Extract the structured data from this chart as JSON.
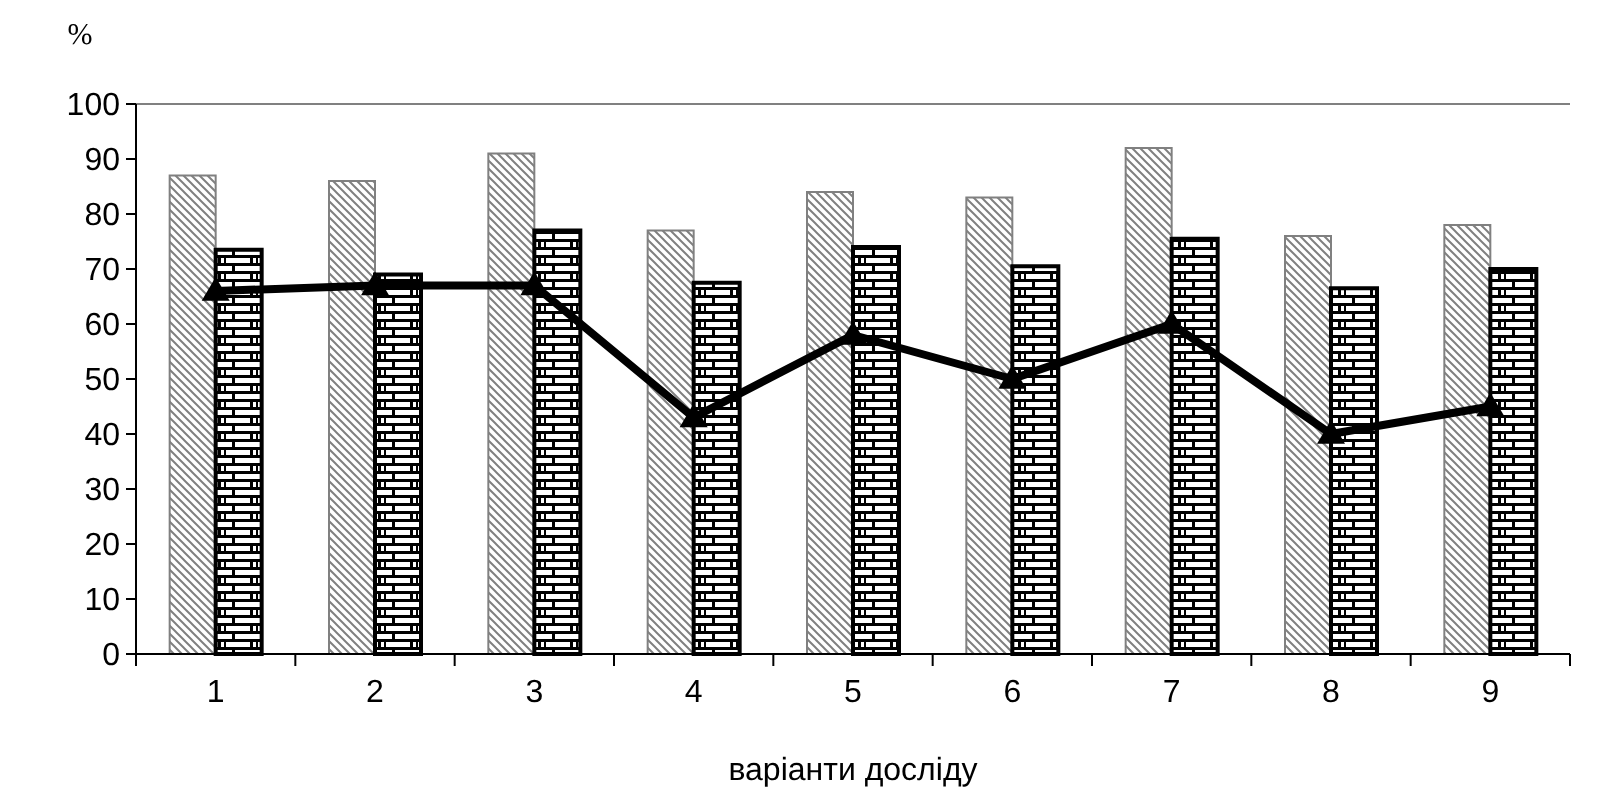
{
  "chart_data": {
    "type": "bar",
    "ylabel": "%",
    "xlabel": "варіанти досліду",
    "categories": [
      "1",
      "2",
      "3",
      "4",
      "5",
      "6",
      "7",
      "8",
      "9"
    ],
    "series": [
      {
        "color": "#808080",
        "values": [
          87,
          86,
          91,
          77,
          84,
          83,
          92,
          76,
          78
        ]
      },
      {
        "color": "#000000",
        "values": [
          73.5,
          69,
          77,
          67.5,
          74,
          70.5,
          75.5,
          66.5,
          70
        ]
      },
      {
        "type": "line",
        "color": "#000000",
        "values": [
          66,
          67,
          67,
          43,
          58,
          50,
          60,
          40,
          45
        ],
        "marker": "triangle",
        "line_style": "solid"
      }
    ],
    "ylim": [
      0,
      100
    ],
    "yticks": [
      0,
      10,
      20,
      30,
      40,
      50,
      60,
      70,
      80,
      90,
      100
    ],
    "grid": false
  }
}
